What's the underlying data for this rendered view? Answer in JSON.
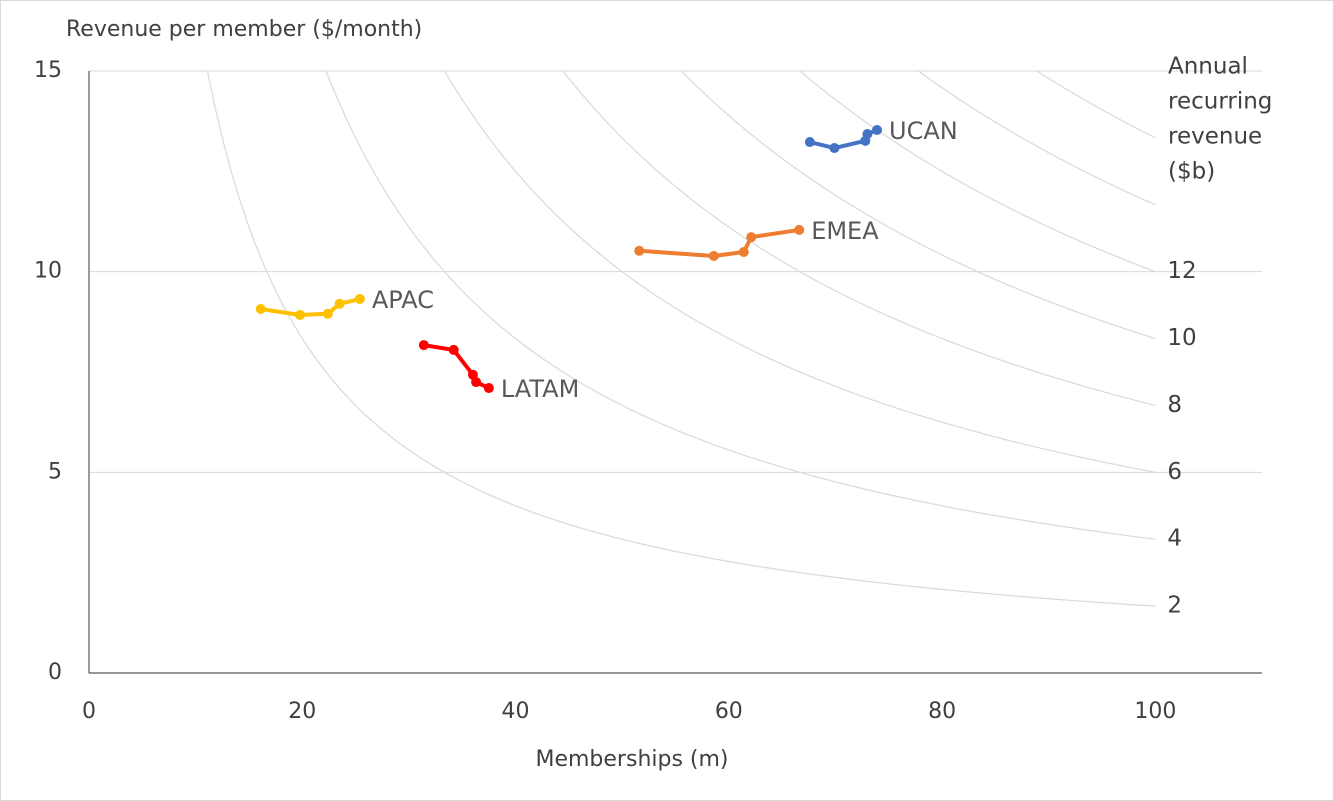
{
  "chart_data": {
    "type": "line",
    "y_title": "Revenue per member  ($/month)",
    "x_title": "Memberships (m)",
    "y2_title_lines": [
      "Annual",
      "recurring",
      "revenue",
      "($b)"
    ],
    "xlim": [
      0,
      110
    ],
    "xticks": [
      0,
      20,
      40,
      60,
      80,
      100
    ],
    "ylim": [
      0,
      15
    ],
    "yticks": [
      0,
      5,
      10,
      15
    ],
    "grid": true,
    "iso_curve_end_x": 100,
    "iso_curves": [
      2,
      4,
      6,
      8,
      10,
      12,
      14,
      16,
      18
    ],
    "iso_labels": [
      2,
      4,
      6,
      8,
      10,
      12
    ],
    "series": [
      {
        "name": "UCAN",
        "color": "#4472c4",
        "x": [
          67.6,
          69.9,
          72.8,
          73.0,
          73.9
        ],
        "values": [
          13.23,
          13.08,
          13.26,
          13.43,
          13.53
        ]
      },
      {
        "name": "EMEA",
        "color": "#ed7d31",
        "x": [
          51.6,
          58.6,
          61.4,
          62.1,
          66.6
        ],
        "values": [
          10.52,
          10.39,
          10.49,
          10.86,
          11.04
        ]
      },
      {
        "name": "APAC",
        "color": "#ffc000",
        "x": [
          16.1,
          19.8,
          22.4,
          23.5,
          25.4
        ],
        "values": [
          9.07,
          8.92,
          8.95,
          9.2,
          9.32
        ]
      },
      {
        "name": "LATAM",
        "color": "#ff0000",
        "x": [
          31.4,
          34.2,
          36.0,
          36.3,
          37.5
        ],
        "values": [
          8.17,
          8.05,
          7.43,
          7.25,
          7.1
        ]
      }
    ]
  }
}
